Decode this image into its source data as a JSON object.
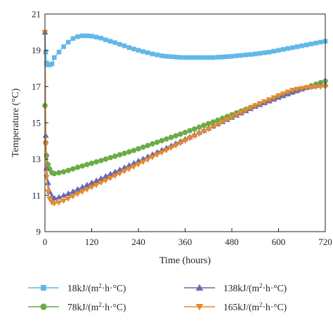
{
  "chart_data": {
    "type": "line",
    "xlabel": "Time (hours)",
    "ylabel": "Temperature (°C)",
    "xlim": [
      0,
      720
    ],
    "ylim": [
      9,
      21
    ],
    "xticks": [
      0,
      120,
      240,
      360,
      480,
      600,
      720
    ],
    "yticks": [
      9,
      11,
      13,
      15,
      17,
      19,
      21
    ],
    "grid": false,
    "legend_placement": "bottom",
    "series": [
      {
        "name_parts": [
          "18kJ/(m",
          "2",
          "·h·°C)"
        ],
        "color": "#62b7e7",
        "marker": "square",
        "x": [
          0,
          2,
          4,
          8,
          12,
          18,
          24,
          36,
          48,
          60,
          72,
          84,
          96,
          108,
          120,
          132,
          144,
          156,
          168,
          180,
          192,
          204,
          216,
          228,
          240,
          252,
          264,
          276,
          288,
          300,
          312,
          324,
          336,
          348,
          360,
          372,
          384,
          396,
          408,
          420,
          432,
          444,
          456,
          468,
          480,
          492,
          504,
          516,
          528,
          540,
          552,
          564,
          576,
          588,
          600,
          612,
          624,
          636,
          648,
          660,
          672,
          684,
          696,
          708,
          720
        ],
        "y": [
          20.0,
          18.9,
          18.3,
          18.2,
          18.2,
          18.25,
          18.6,
          18.9,
          19.2,
          19.45,
          19.65,
          19.75,
          19.8,
          19.8,
          19.78,
          19.73,
          19.67,
          19.58,
          19.5,
          19.42,
          19.33,
          19.25,
          19.15,
          19.07,
          19.0,
          18.93,
          18.87,
          18.8,
          18.75,
          18.7,
          18.67,
          18.65,
          18.63,
          18.61,
          18.6,
          18.6,
          18.6,
          18.6,
          18.6,
          18.6,
          18.6,
          18.62,
          18.63,
          18.65,
          18.67,
          18.7,
          18.72,
          18.75,
          18.77,
          18.8,
          18.83,
          18.87,
          18.9,
          18.95,
          19.0,
          19.05,
          19.1,
          19.15,
          19.2,
          19.25,
          19.3,
          19.35,
          19.4,
          19.45,
          19.5
        ]
      },
      {
        "name_parts": [
          "78kJ/(m",
          "2",
          "·h·°C)"
        ],
        "color": "#6aac45",
        "marker": "circle",
        "x": [
          0,
          2,
          4,
          8,
          12,
          18,
          24,
          36,
          48,
          60,
          72,
          84,
          96,
          108,
          120,
          132,
          144,
          156,
          168,
          180,
          192,
          204,
          216,
          228,
          240,
          252,
          264,
          276,
          288,
          300,
          312,
          324,
          336,
          348,
          360,
          372,
          384,
          396,
          408,
          420,
          432,
          444,
          456,
          468,
          480,
          492,
          504,
          516,
          528,
          540,
          552,
          564,
          576,
          588,
          600,
          612,
          624,
          636,
          648,
          660,
          672,
          684,
          696,
          708,
          720
        ],
        "y": [
          15.95,
          13.9,
          13.2,
          12.7,
          12.45,
          12.25,
          12.2,
          12.25,
          12.3,
          12.38,
          12.46,
          12.55,
          12.62,
          12.7,
          12.77,
          12.85,
          12.92,
          13.0,
          13.08,
          13.16,
          13.24,
          13.32,
          13.4,
          13.48,
          13.57,
          13.66,
          13.75,
          13.84,
          13.93,
          14.02,
          14.11,
          14.2,
          14.29,
          14.38,
          14.47,
          14.57,
          14.66,
          14.76,
          14.86,
          14.96,
          15.05,
          15.15,
          15.25,
          15.35,
          15.45,
          15.55,
          15.65,
          15.75,
          15.85,
          15.95,
          16.05,
          16.14,
          16.23,
          16.32,
          16.41,
          16.5,
          16.59,
          16.68,
          16.77,
          16.86,
          16.95,
          17.04,
          17.13,
          17.22,
          17.3
        ]
      },
      {
        "name_parts": [
          "138kJ/(m",
          "2",
          "·h·°C)"
        ],
        "color": "#6b68b1",
        "marker": "triangle-up",
        "x": [
          0,
          2,
          4,
          8,
          12,
          18,
          24,
          36,
          48,
          60,
          72,
          84,
          96,
          108,
          120,
          132,
          144,
          156,
          168,
          180,
          192,
          204,
          216,
          228,
          240,
          252,
          264,
          276,
          288,
          300,
          312,
          324,
          336,
          348,
          360,
          372,
          384,
          396,
          408,
          420,
          432,
          444,
          456,
          468,
          480,
          492,
          504,
          516,
          528,
          540,
          552,
          564,
          576,
          588,
          600,
          612,
          624,
          636,
          648,
          660,
          672,
          684,
          696,
          708,
          720
        ],
        "y": [
          20.0,
          14.3,
          12.5,
          11.7,
          11.2,
          10.95,
          10.85,
          10.9,
          11.0,
          11.1,
          11.22,
          11.34,
          11.46,
          11.58,
          11.7,
          11.82,
          11.94,
          12.06,
          12.18,
          12.3,
          12.42,
          12.54,
          12.66,
          12.78,
          12.9,
          13.02,
          13.14,
          13.26,
          13.38,
          13.5,
          13.62,
          13.74,
          13.86,
          13.98,
          14.1,
          14.22,
          14.34,
          14.46,
          14.58,
          14.7,
          14.82,
          14.94,
          15.06,
          15.18,
          15.3,
          15.42,
          15.54,
          15.66,
          15.78,
          15.9,
          16.0,
          16.1,
          16.2,
          16.3,
          16.4,
          16.5,
          16.6,
          16.7,
          16.78,
          16.86,
          16.94,
          17.0,
          17.05,
          17.08,
          17.1
        ]
      },
      {
        "name_parts": [
          "165kJ/(m",
          "2",
          "·h·°C)"
        ],
        "color": "#e58b2b",
        "marker": "triangle-down",
        "x": [
          0,
          2,
          4,
          8,
          12,
          18,
          24,
          36,
          48,
          60,
          72,
          84,
          96,
          108,
          120,
          132,
          144,
          156,
          168,
          180,
          192,
          204,
          216,
          228,
          240,
          252,
          264,
          276,
          288,
          300,
          312,
          324,
          336,
          348,
          360,
          372,
          384,
          396,
          408,
          420,
          432,
          444,
          456,
          468,
          480,
          492,
          504,
          516,
          528,
          540,
          552,
          564,
          576,
          588,
          600,
          612,
          624,
          636,
          648,
          660,
          672,
          684,
          696,
          708,
          720
        ],
        "y": [
          20.0,
          13.8,
          12.0,
          11.2,
          10.8,
          10.6,
          10.55,
          10.6,
          10.7,
          10.82,
          10.95,
          11.08,
          11.2,
          11.32,
          11.45,
          11.57,
          11.7,
          11.82,
          11.95,
          12.07,
          12.2,
          12.33,
          12.45,
          12.58,
          12.71,
          12.84,
          12.97,
          13.1,
          13.23,
          13.36,
          13.49,
          13.62,
          13.75,
          13.88,
          14.01,
          14.14,
          14.27,
          14.4,
          14.53,
          14.66,
          14.79,
          14.92,
          15.05,
          15.18,
          15.31,
          15.44,
          15.57,
          15.7,
          15.82,
          15.94,
          16.06,
          16.17,
          16.28,
          16.39,
          16.5,
          16.6,
          16.7,
          16.8,
          16.86,
          16.9,
          16.94,
          16.96,
          16.98,
          16.99,
          17.0
        ]
      }
    ]
  }
}
